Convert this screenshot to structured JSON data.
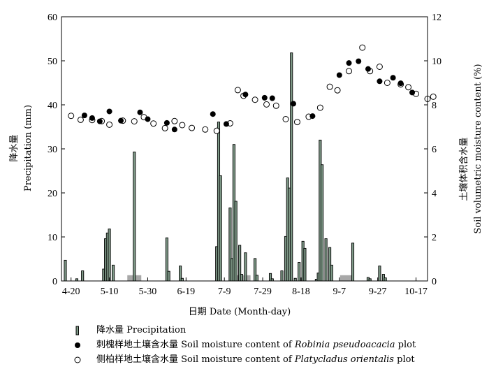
{
  "chart_data": {
    "type": "bar+scatter",
    "xlabel": "日期  Date (Month-day)",
    "ylabel_left": [
      "降水量",
      "Precipitation (mm)"
    ],
    "ylabel_right": [
      "土壤体积含水量",
      "Soil volumetric moisture content (%)"
    ],
    "ylim_left": [
      0,
      60
    ],
    "ylim_right": [
      0,
      12
    ],
    "xlim_day": [
      105,
      296
    ],
    "yticks_left": [
      0,
      10,
      20,
      30,
      40,
      50,
      60
    ],
    "yticks_right": [
      0,
      2,
      4,
      6,
      8,
      10,
      12
    ],
    "xticks": [
      {
        "label": "4-20",
        "day": 110
      },
      {
        "label": "5-10",
        "day": 130
      },
      {
        "label": "5-30",
        "day": 150
      },
      {
        "label": "6-19",
        "day": 170
      },
      {
        "label": "7-9",
        "day": 190
      },
      {
        "label": "7-29",
        "day": 210
      },
      {
        "label": "8-18",
        "day": 230
      },
      {
        "label": "9-7",
        "day": 250
      },
      {
        "label": "9-27",
        "day": 270
      },
      {
        "label": "10-17",
        "day": 290
      }
    ],
    "precipitation": {
      "name": "降水量 Precipitation",
      "points": [
        [
          107,
          4.7
        ],
        [
          113,
          0.5
        ],
        [
          116,
          2.3
        ],
        [
          127,
          2.7
        ],
        [
          128,
          9.6
        ],
        [
          129,
          10.9
        ],
        [
          130,
          11.8
        ],
        [
          132,
          3.6
        ],
        [
          143,
          29.3
        ],
        [
          160,
          9.8
        ],
        [
          161,
          2.2
        ],
        [
          167,
          3.4
        ],
        [
          168,
          0.6
        ],
        [
          186,
          7.8
        ],
        [
          187,
          36.1
        ],
        [
          188,
          23.9
        ],
        [
          193,
          16.6
        ],
        [
          194,
          5.1
        ],
        [
          195,
          31.0
        ],
        [
          196,
          18.1
        ],
        [
          198,
          8.1
        ],
        [
          199,
          1.5
        ],
        [
          201,
          6.4
        ],
        [
          206,
          5.1
        ],
        [
          207,
          1.3
        ],
        [
          214,
          1.7
        ],
        [
          215,
          0.5
        ],
        [
          220,
          2.3
        ],
        [
          222,
          10.1
        ],
        [
          223,
          23.4
        ],
        [
          224,
          21.1
        ],
        [
          225,
          51.8
        ],
        [
          227,
          0.6
        ],
        [
          229,
          4.2
        ],
        [
          231,
          9.0
        ],
        [
          232,
          7.4
        ],
        [
          238,
          0.4
        ],
        [
          239,
          1.8
        ],
        [
          240,
          32.0
        ],
        [
          241,
          26.4
        ],
        [
          243,
          9.6
        ],
        [
          245,
          7.6
        ],
        [
          246,
          3.6
        ],
        [
          257,
          8.6
        ],
        [
          265,
          0.8
        ],
        [
          266,
          0.5
        ],
        [
          271,
          3.4
        ],
        [
          273,
          1.5
        ],
        [
          274,
          0.7
        ]
      ]
    },
    "gray_bars": [
      {
        "day": 143,
        "value": 1.3
      },
      {
        "day": 200,
        "value": 1.3
      },
      {
        "day": 254,
        "value": 1.3
      }
    ],
    "robinia": {
      "name": "刺槐样地土壤含水量 Soil moisture content of Robinia pseudoacacia plot",
      "points": [
        [
          117,
          7.52
        ],
        [
          121,
          7.4
        ],
        [
          125,
          7.25
        ],
        [
          130,
          7.7
        ],
        [
          136,
          7.28
        ],
        [
          146,
          7.66
        ],
        [
          150,
          7.35
        ],
        [
          160,
          7.18
        ],
        [
          164,
          6.88
        ],
        [
          184,
          7.58
        ],
        [
          191,
          7.13
        ],
        [
          201,
          8.47
        ],
        [
          211,
          8.32
        ],
        [
          215,
          8.3
        ],
        [
          226,
          8.05
        ],
        [
          236,
          7.49
        ],
        [
          250,
          9.35
        ],
        [
          255,
          9.9
        ],
        [
          260,
          9.98
        ],
        [
          265,
          9.63
        ],
        [
          271,
          9.07
        ],
        [
          278,
          9.23
        ],
        [
          282,
          8.98
        ],
        [
          288,
          8.56
        ]
      ]
    },
    "platycladus": {
      "name": "侧柏样地土壤含水量 Soil moisture content of Platycladus orientalis plot",
      "points": [
        [
          110,
          7.5
        ],
        [
          115,
          7.32
        ],
        [
          121,
          7.31
        ],
        [
          126,
          7.26
        ],
        [
          130,
          7.1
        ],
        [
          137,
          7.28
        ],
        [
          143,
          7.25
        ],
        [
          148,
          7.44
        ],
        [
          153,
          7.15
        ],
        [
          159,
          6.94
        ],
        [
          164,
          7.26
        ],
        [
          168,
          7.08
        ],
        [
          173,
          6.95
        ],
        [
          180,
          6.88
        ],
        [
          186,
          6.82
        ],
        [
          193,
          7.16
        ],
        [
          197,
          8.67
        ],
        [
          200,
          8.41
        ],
        [
          206,
          8.23
        ],
        [
          212,
          8.02
        ],
        [
          217,
          7.96
        ],
        [
          222,
          7.35
        ],
        [
          228,
          7.22
        ],
        [
          234,
          7.46
        ],
        [
          240,
          7.87
        ],
        [
          245,
          8.82
        ],
        [
          249,
          8.66
        ],
        [
          255,
          9.53
        ],
        [
          262,
          10.6
        ],
        [
          266,
          9.53
        ],
        [
          271,
          9.73
        ],
        [
          275,
          9.0
        ],
        [
          282,
          8.93
        ],
        [
          286,
          8.8
        ],
        [
          290,
          8.5
        ],
        [
          296,
          8.27
        ],
        [
          299,
          8.37
        ]
      ]
    }
  },
  "legend": {
    "precip": "降水量 Precipitation",
    "robinia_prefix": "刺槐样地土壤含水量 Soil moisture content of ",
    "robinia_species": "Robinia pseudoacacia",
    "robinia_suffix": " plot",
    "platy_prefix": "侧柏样地土壤含水量 Soil moisture content of ",
    "platy_species": "Platycladus orientalis",
    "platy_suffix": " plot"
  }
}
